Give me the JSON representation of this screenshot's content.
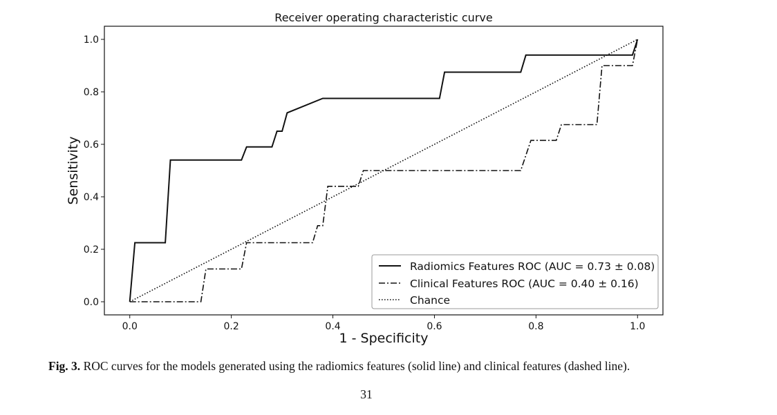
{
  "chart_data": {
    "type": "line",
    "title": "Receiver operating characteristic curve",
    "xlabel": "1 - Specificity",
    "ylabel": "Sensitivity",
    "xlim": [
      -0.05,
      1.05
    ],
    "ylim": [
      -0.05,
      1.05
    ],
    "xticks": [
      0.0,
      0.2,
      0.4,
      0.6,
      0.8,
      1.0
    ],
    "yticks": [
      0.0,
      0.2,
      0.4,
      0.6,
      0.8,
      1.0
    ],
    "xtick_labels": [
      "0.0",
      "0.2",
      "0.4",
      "0.6",
      "0.8",
      "1.0"
    ],
    "ytick_labels": [
      "0.0",
      "0.2",
      "0.4",
      "0.6",
      "0.8",
      "1.0"
    ],
    "grid": false,
    "legend_position": "lower-right",
    "series": [
      {
        "name": "Radiomics Features ROC (AUC = 0.73 ± 0.08)",
        "style": "solid",
        "x": [
          0.0,
          0.01,
          0.07,
          0.08,
          0.22,
          0.23,
          0.28,
          0.29,
          0.3,
          0.31,
          0.38,
          0.61,
          0.62,
          0.77,
          0.78,
          0.99,
          1.0
        ],
        "y": [
          0.0,
          0.225,
          0.225,
          0.54,
          0.54,
          0.59,
          0.59,
          0.65,
          0.65,
          0.72,
          0.775,
          0.775,
          0.875,
          0.875,
          0.94,
          0.94,
          1.0
        ]
      },
      {
        "name": "Clinical Features ROC (AUC = 0.40 ± 0.16)",
        "style": "dashdot",
        "x": [
          0.0,
          0.14,
          0.15,
          0.22,
          0.23,
          0.36,
          0.37,
          0.38,
          0.39,
          0.45,
          0.46,
          0.77,
          0.79,
          0.84,
          0.85,
          0.92,
          0.93,
          0.99,
          1.0
        ],
        "y": [
          0.0,
          0.0,
          0.125,
          0.125,
          0.225,
          0.225,
          0.29,
          0.29,
          0.44,
          0.44,
          0.5,
          0.5,
          0.615,
          0.615,
          0.675,
          0.675,
          0.9,
          0.9,
          1.0
        ]
      },
      {
        "name": "Chance",
        "style": "dotted",
        "x": [
          0.0,
          1.0
        ],
        "y": [
          0.0,
          1.0
        ]
      }
    ]
  },
  "caption": {
    "lead": "Fig. 3.",
    "text": " ROC curves for the models generated using the radiomics features (solid line) and clinical features (dashed line)."
  },
  "page_number": "31"
}
